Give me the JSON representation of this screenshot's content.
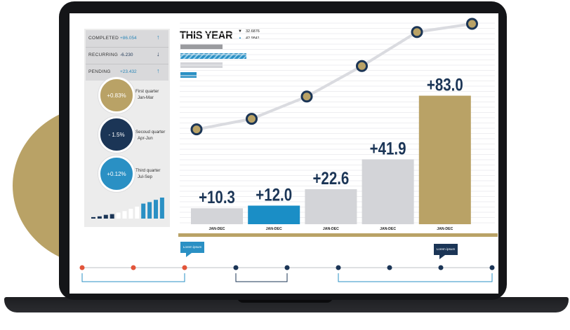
{
  "stats": [
    {
      "label": "COMPLETED",
      "value": "+86.054",
      "direction": "up",
      "arrow_icon": "arrow-up-icon"
    },
    {
      "label": "RECURRING",
      "value": "-6.230",
      "direction": "down",
      "arrow_icon": "arrow-down-icon"
    },
    {
      "label": "PENDING",
      "value": "+23.432",
      "direction": "up",
      "arrow_icon": "arrow-up-icon"
    }
  ],
  "quarters": [
    {
      "value": "+0.83%",
      "name": "First quarter",
      "range": "Jan-Mar",
      "color": "#b9a266"
    },
    {
      "value": "- 1.5%",
      "name": "Secoud quarter",
      "range": "Apr-Jun",
      "color": "#1b3556"
    },
    {
      "value": "+0.12%",
      "name": "Third quarter",
      "range": "Jul-Sep",
      "color": "#2a90c4"
    }
  ],
  "mini_chart": {
    "values": [
      2,
      3,
      5,
      6,
      8,
      10,
      13,
      16,
      20,
      22,
      25,
      28
    ],
    "colors": [
      "#1b3556",
      "#ffffff",
      "#2a90c4"
    ]
  },
  "header": {
    "title": "THIS YEAR",
    "legend": [
      {
        "marker": "▼",
        "value": "32.6876"
      },
      {
        "marker": "▲",
        "value": "42.9841"
      }
    ]
  },
  "legend_bars": [
    {
      "fraction": 0.64,
      "color": "#9a9b9f",
      "pattern": "solid"
    },
    {
      "fraction": 1.0,
      "color": "#2a90c4",
      "pattern": "striped"
    },
    {
      "fraction": 0.64,
      "color": "#d3d4d8",
      "pattern": "solid"
    },
    {
      "fraction": 0.24,
      "color": "#2a90c4",
      "pattern": "solid"
    }
  ],
  "chart_data": {
    "type": "bar",
    "categories": [
      "JAN-DEC",
      "JAN-DEC",
      "JAN-DEC",
      "JAN-DEC",
      "JAN-DEC"
    ],
    "values": [
      10.3,
      12.0,
      22.6,
      41.9,
      83.0
    ],
    "labels": [
      "+10.3",
      "+12.0",
      "+22.6",
      "+41.9",
      "+83.0"
    ],
    "bar_colors": [
      "#d3d4d8",
      "#1a8ec6",
      "#d3d4d8",
      "#d3d4d8",
      "#b9a266"
    ],
    "line_values": [
      45,
      54,
      73,
      99,
      128,
      135
    ],
    "ylim": [
      0,
      100
    ],
    "grid": true,
    "colors": {
      "line": "#dadbe0",
      "marker_fill": "#b9a266",
      "marker_stroke": "#1b3556",
      "baseline": "#b9a266"
    }
  },
  "timeline": {
    "bubbles": [
      {
        "text": "Lorem ipsum",
        "color": "#2a90c4"
      },
      {
        "text": "Lorem ipsum",
        "color": "#1b3556"
      }
    ],
    "dot_colors": [
      "#e2553a",
      "#e2553a",
      "#e2553a",
      "#1b3556",
      "#1b3556",
      "#1b3556",
      "#1b3556",
      "#1b3556",
      "#1b3556"
    ],
    "bracket_colors": [
      "#2a90c4",
      "#1b3556",
      "#2a90c4"
    ]
  }
}
